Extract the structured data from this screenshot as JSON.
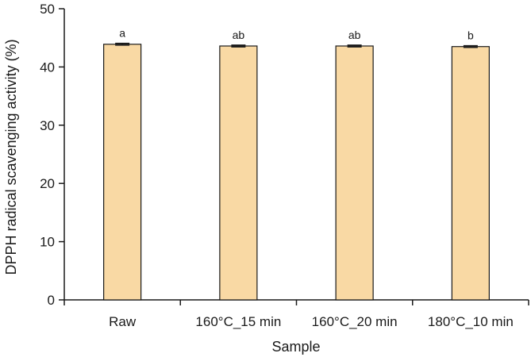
{
  "chart_data": {
    "type": "bar",
    "title": "",
    "xlabel": "Sample",
    "ylabel": "DPPH radical scavenging activity (%)",
    "categories": [
      "Raw",
      "160°C_15 min",
      "160°C_20 min",
      "180°C_10 min"
    ],
    "values": [
      43.9,
      43.6,
      43.6,
      43.5
    ],
    "errors": [
      0.15,
      0.15,
      0.15,
      0.15
    ],
    "significance": [
      "a",
      "ab",
      "ab",
      "b"
    ],
    "ylim": [
      0,
      50
    ],
    "yticks": [
      0,
      10,
      20,
      30,
      40,
      50
    ],
    "grid": false,
    "legend": "none",
    "colors": {
      "bar_fill": "#F9D9A4",
      "bar_edge": "#1a1a1a",
      "axis": "#1a1a1a"
    }
  }
}
